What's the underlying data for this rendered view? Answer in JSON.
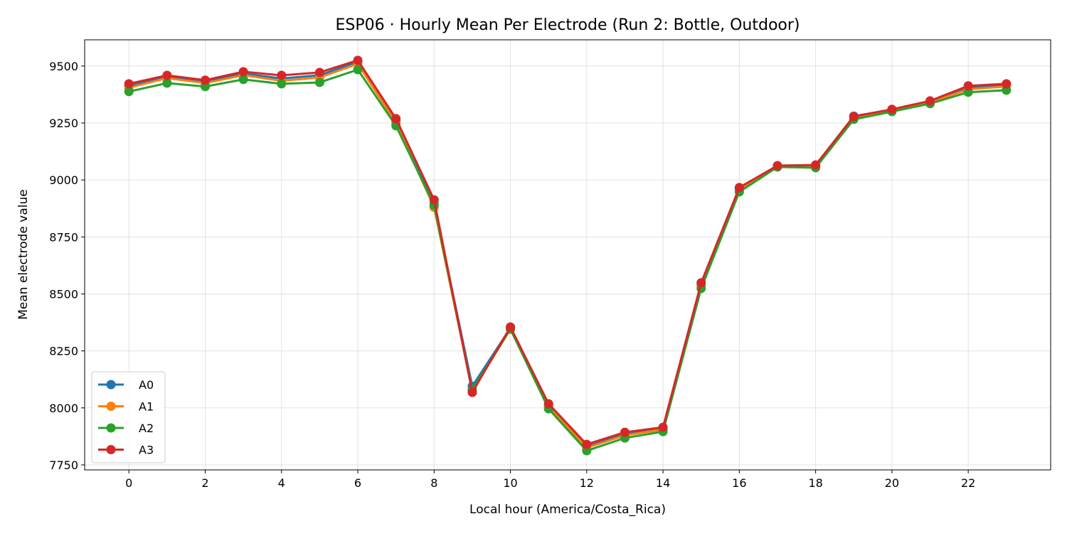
{
  "chart_data": {
    "type": "line",
    "title": "ESP06 · Hourly Mean Per Electrode (Run 2: Bottle, Outdoor)",
    "xlabel": "Local hour (America/Costa_Rica)",
    "ylabel": "Mean electrode value",
    "xlim": [
      -1.16,
      24.16
    ],
    "ylim": [
      7728,
      9615
    ],
    "xticks": [
      0,
      2,
      4,
      6,
      8,
      10,
      12,
      14,
      16,
      18,
      20,
      22
    ],
    "yticks": [
      7750,
      8000,
      8250,
      8500,
      8750,
      9000,
      9250,
      9500
    ],
    "grid": true,
    "legend": "lower-left",
    "x": [
      0,
      1,
      2,
      3,
      4,
      5,
      6,
      7,
      8,
      9,
      10,
      11,
      12,
      13,
      14,
      15,
      16,
      17,
      18,
      19,
      20,
      21,
      22,
      23
    ],
    "series": [
      {
        "name": "A0",
        "color": "#1f77b4",
        "values": [
          9412,
          9452,
          9430,
          9467,
          9445,
          9460,
          9518,
          9258,
          8895,
          8095,
          8350,
          8010,
          7830,
          7885,
          7910,
          8540,
          8962,
          9060,
          9063,
          9280,
          9308,
          9343,
          9405,
          9416
        ]
      },
      {
        "name": "A1",
        "color": "#ff7f0e",
        "values": [
          9405,
          9447,
          9425,
          9460,
          9435,
          9450,
          9510,
          9250,
          8880,
          8075,
          8345,
          8005,
          7825,
          7880,
          7905,
          8535,
          8958,
          9060,
          9060,
          9272,
          9305,
          9340,
          9398,
          9410
        ]
      },
      {
        "name": "A2",
        "color": "#2ca02c",
        "values": [
          9388,
          9425,
          9410,
          9441,
          9422,
          9428,
          9484,
          9238,
          8889,
          8080,
          8346,
          7996,
          7812,
          7868,
          7896,
          8524,
          8948,
          9057,
          9054,
          9266,
          9300,
          9335,
          9385,
          9394
        ]
      },
      {
        "name": "A3",
        "color": "#d62728",
        "values": [
          9422,
          9459,
          9438,
          9475,
          9459,
          9472,
          9525,
          9269,
          8913,
          8068,
          8355,
          8018,
          7840,
          7893,
          7915,
          8549,
          8967,
          9063,
          9066,
          9279,
          9310,
          9347,
          9413,
          9422
        ]
      }
    ]
  }
}
